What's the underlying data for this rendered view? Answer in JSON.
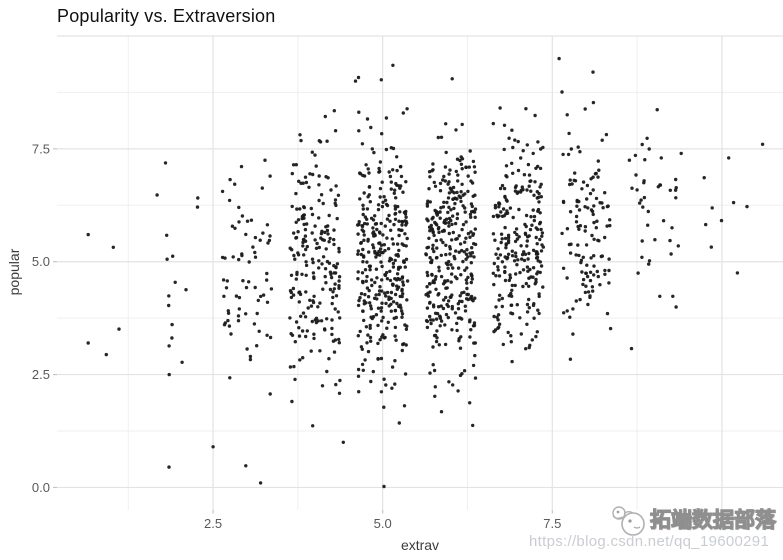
{
  "watermark": {
    "brand": "拓端数据部落",
    "url": "https://blog.csdn.net/qq_19600291",
    "icon": "panda-face-icon"
  },
  "chart_data": {
    "type": "scatter",
    "title": "Popularity vs. Extraversion",
    "xlabel": "extrav",
    "ylabel": "popular",
    "xlim": [
      0.2,
      10.9
    ],
    "ylim": [
      -0.5,
      10.0
    ],
    "x_ticks": [
      2.5,
      5.0,
      7.5
    ],
    "x_tick_labels": [
      "2.5",
      "5.0",
      "7.5"
    ],
    "y_ticks": [
      0.0,
      2.5,
      5.0,
      7.5
    ],
    "y_tick_labels": [
      "0.0",
      "2.5",
      "5.0",
      "7.5"
    ],
    "grid": {
      "on": true,
      "major_x": [
        2.5,
        5.0,
        7.5,
        10.0
      ],
      "minor_x": [
        1.25,
        3.75,
        6.25,
        8.75
      ],
      "major_y": [
        0.0,
        2.5,
        5.0,
        7.5,
        10.0
      ],
      "minor_y": [
        1.25,
        3.75,
        6.25,
        8.75
      ]
    },
    "legend": "none",
    "style": {
      "point_color": "#1a1a1a",
      "point_radius": 1.7,
      "major_grid_color": "#e3e3e3",
      "minor_grid_color": "#efefef",
      "tick_mark_color": "#c6c6c6",
      "background": "#ffffff"
    },
    "jitter_halfwidth": 0.37,
    "clusters": [
      {
        "extrav": 1,
        "n": 2,
        "popular_mean": 4.6,
        "popular_sd": 1.15
      },
      {
        "extrav": 2,
        "n": 16,
        "popular_mean": 4.6,
        "popular_sd": 1.35
      },
      {
        "extrav": 3,
        "n": 72,
        "popular_mean": 4.65,
        "popular_sd": 1.3
      },
      {
        "extrav": 4,
        "n": 210,
        "popular_mean": 4.85,
        "popular_sd": 1.3
      },
      {
        "extrav": 5,
        "n": 345,
        "popular_mean": 5.0,
        "popular_sd": 1.35
      },
      {
        "extrav": 6,
        "n": 345,
        "popular_mean": 5.2,
        "popular_sd": 1.3
      },
      {
        "extrav": 7,
        "n": 250,
        "popular_mean": 5.45,
        "popular_sd": 1.25
      },
      {
        "extrav": 8,
        "n": 125,
        "popular_mean": 5.7,
        "popular_sd": 1.2
      },
      {
        "extrav": 9,
        "n": 42,
        "popular_mean": 5.95,
        "popular_sd": 1.15
      },
      {
        "extrav": 10,
        "n": 8,
        "popular_mean": 6.1,
        "popular_sd": 0.95
      }
    ],
    "notable_points": [
      [
        5.02,
        0.02
      ],
      [
        3.2,
        0.1
      ],
      [
        2.5,
        0.9
      ],
      [
        1.85,
        0.45
      ],
      [
        4.42,
        1.0
      ],
      [
        3.05,
        2.9
      ],
      [
        7.6,
        9.5
      ],
      [
        8.1,
        9.2
      ],
      [
        5.15,
        9.35
      ],
      [
        4.6,
        9.0
      ],
      [
        9.4,
        7.4
      ],
      [
        10.6,
        7.6
      ],
      [
        10.1,
        7.3
      ],
      [
        0.66,
        5.6
      ],
      [
        1.03,
        5.32
      ],
      [
        0.66,
        3.2
      ]
    ]
  }
}
